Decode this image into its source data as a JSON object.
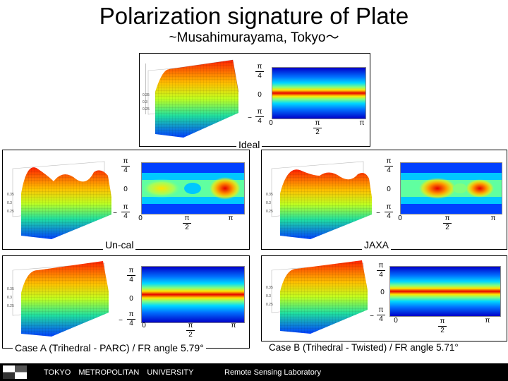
{
  "header": {
    "title": "Polarization signature of Plate",
    "subtitle": "~Musahimurayama, Tokyo～"
  },
  "ticks": {
    "pi": "π",
    "four": "4",
    "two": "2",
    "zero": "0",
    "minus": "−"
  },
  "panels": [
    {
      "id": "ideal",
      "caption": "Ideal"
    },
    {
      "id": "uncal",
      "caption": "Un-cal"
    },
    {
      "id": "jaxa",
      "caption": "JAXA"
    },
    {
      "id": "case-a",
      "caption": "Case A (Trihedral - PARC) / FR angle 5.79°"
    },
    {
      "id": "case-b",
      "caption": "Case B (Trihedral - Twisted) / FR angle 5.71°"
    }
  ],
  "footer": {
    "organization": "TOKYO METROPOLITAN UNIVERSITY",
    "laboratory": "Remote Sensing Laboratory"
  },
  "colors": {
    "jet_blue": "#0000c8",
    "jet_cyan": "#00c8ff",
    "jet_yellow": "#ffe600",
    "jet_red": "#e60000",
    "footer_bg": "#000000"
  },
  "icons": {
    "logo": "tmu-checker-logo-icon"
  }
}
